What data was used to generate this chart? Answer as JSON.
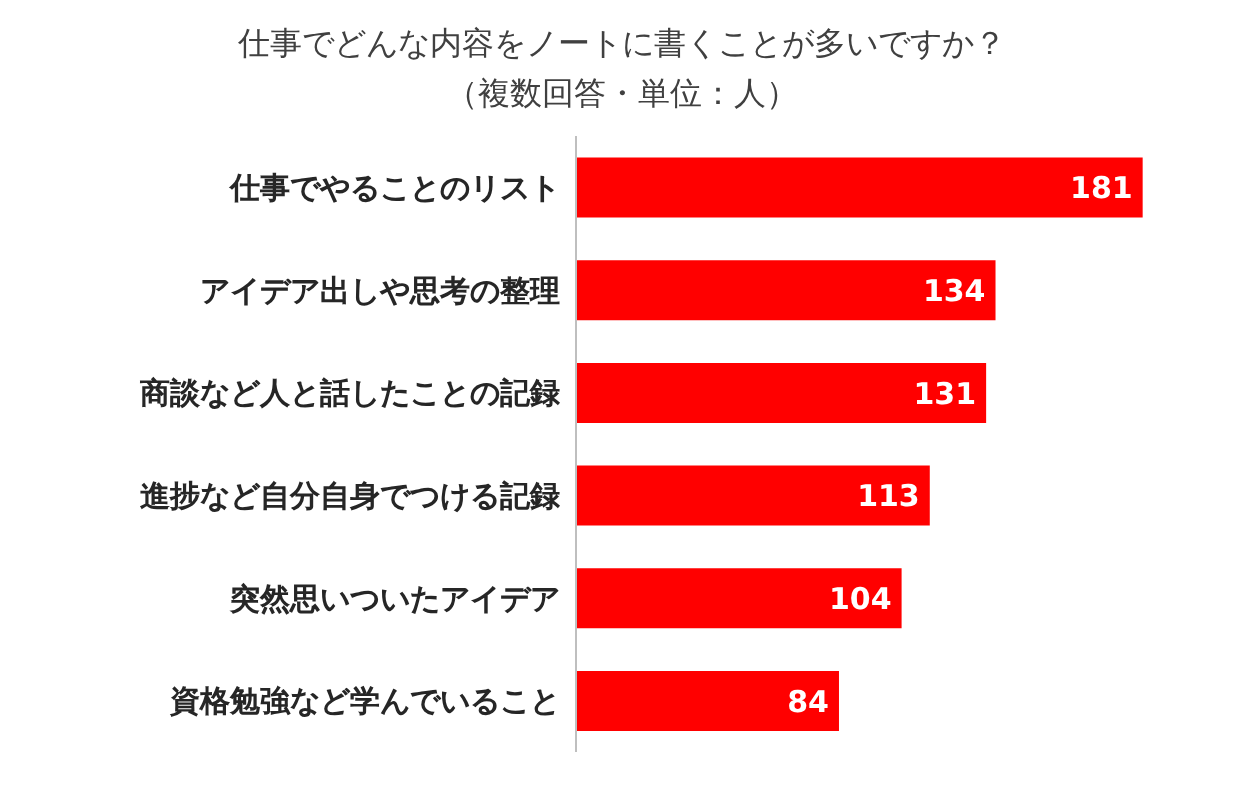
{
  "chart_data": {
    "type": "bar",
    "orientation": "horizontal",
    "title": "仕事でどんな内容をノートに書くことが多いですか？",
    "subtitle": "（複数回答・単位：人）",
    "categories": [
      "仕事でやることのリスト",
      "アイデア出しや思考の整理",
      "商談など人と話したことの記録",
      "進捗など自分自身でつける記録",
      "突然思いついたアイデア",
      "資格勉強など学んでいること"
    ],
    "values": [
      181,
      134,
      131,
      113,
      104,
      84
    ],
    "color": "#ff0000",
    "data_labels": true,
    "grid": false,
    "legend": false
  }
}
